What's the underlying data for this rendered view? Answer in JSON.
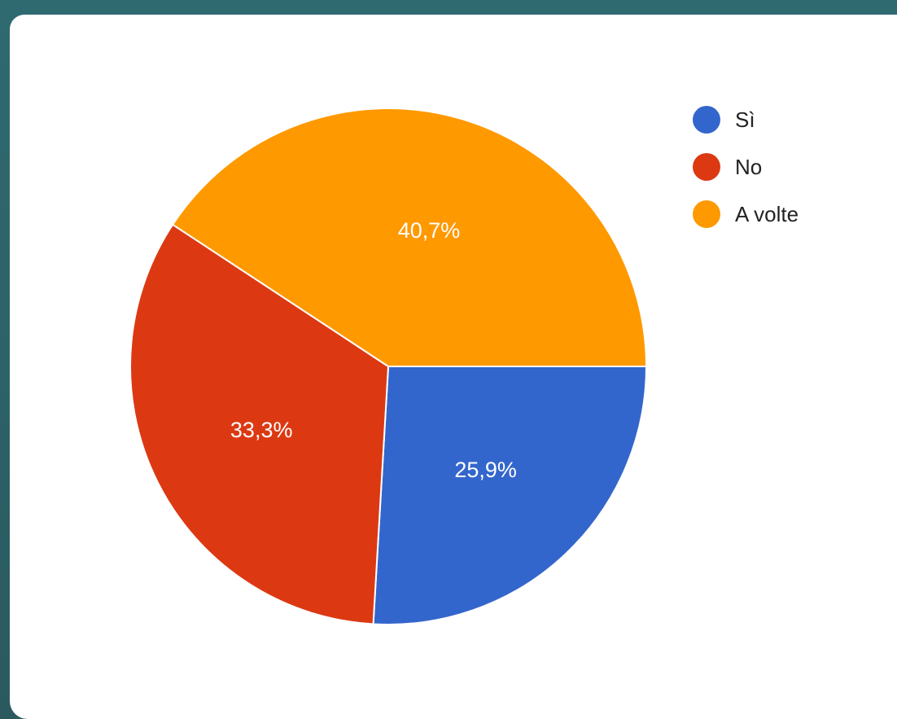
{
  "chart_data": {
    "type": "pie",
    "slices": [
      {
        "label": "Sì",
        "value": 25.9,
        "display": "25,9%",
        "color": "#3366cc"
      },
      {
        "label": "No",
        "value": 33.3,
        "display": "33,3%",
        "color": "#dc3912"
      },
      {
        "label": "A volte",
        "value": 40.7,
        "display": "40,7%",
        "color": "#ff9900"
      }
    ],
    "start_direction": "east",
    "direction": "clockwise",
    "legend_position": "top-right"
  },
  "colors": {
    "background_frame": "#2c5f66",
    "card": "#ffffff",
    "slice_border": "#ffffff"
  }
}
